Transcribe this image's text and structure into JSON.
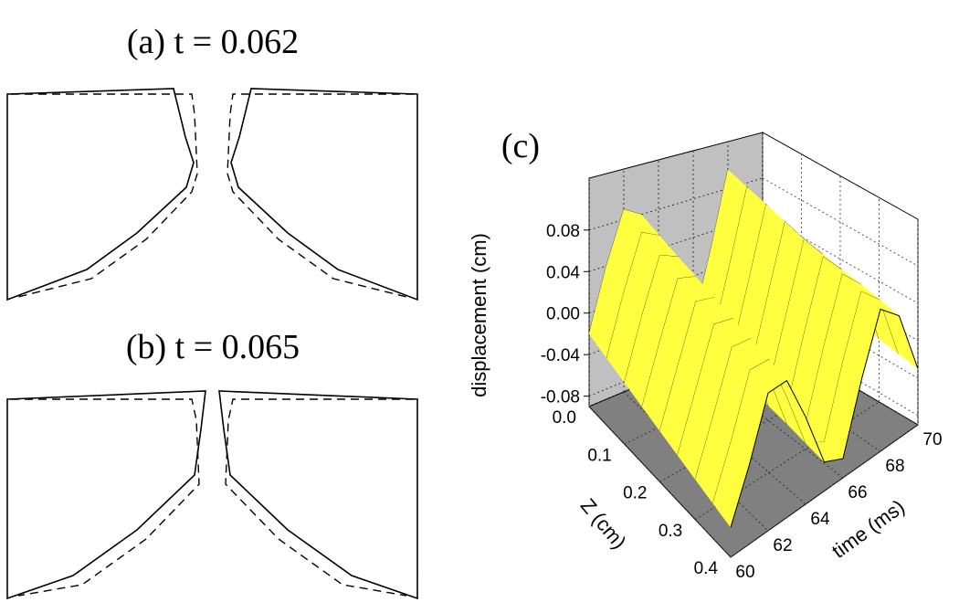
{
  "panel_a": {
    "label": "(a) t = 0.062"
  },
  "panel_b": {
    "label": "(b) t = 0.065"
  },
  "chart_data": {
    "type": "surface3d",
    "label": "(c)",
    "y_label": "displacement (cm)",
    "x_label": "Z (cm)",
    "t_label": "time (ms)",
    "xlim": [
      0,
      0.4
    ],
    "xticks": [
      {
        "value": 0,
        "label": "0.0"
      },
      0.1,
      0.2,
      0.3,
      0.4
    ],
    "tlim": [
      60,
      70
    ],
    "tticks": [
      60,
      62,
      64,
      66,
      68,
      70
    ],
    "ylim": [
      -0.09,
      0.13
    ],
    "yticks": [
      -0.08,
      -0.04,
      {
        "value": 0,
        "label": "0.00"
      },
      0.04,
      0.08
    ],
    "grid": true,
    "color": "#ffff40",
    "x": [
      0,
      0.05,
      0.1,
      0.15,
      0.2,
      0.25,
      0.3,
      0.35,
      0.4
    ],
    "time": [
      60,
      61,
      62,
      63,
      64,
      65,
      66,
      67,
      68,
      69,
      70
    ],
    "values": [
      [
        -0.02,
        0.04,
        0.09,
        0.08,
        0.03,
        -0.03,
        -0.05,
        0.02,
        0.1,
        0.07,
        0.0
      ],
      [
        -0.025,
        0.034,
        0.085,
        0.076,
        0.026,
        -0.034,
        -0.053,
        0.018,
        0.095,
        0.066,
        -0.004
      ],
      [
        -0.03,
        0.028,
        0.08,
        0.072,
        0.022,
        -0.038,
        -0.055,
        0.015,
        0.09,
        0.062,
        -0.008
      ],
      [
        -0.035,
        0.021,
        0.075,
        0.069,
        0.019,
        -0.041,
        -0.058,
        0.013,
        0.085,
        0.059,
        -0.011
      ],
      [
        -0.04,
        0.015,
        0.07,
        0.065,
        0.015,
        -0.045,
        -0.06,
        0.01,
        0.08,
        0.055,
        -0.015
      ],
      [
        -0.045,
        0.009,
        0.065,
        0.061,
        0.011,
        -0.049,
        -0.063,
        0.008,
        0.075,
        0.051,
        -0.019
      ],
      [
        -0.05,
        0.003,
        0.06,
        0.058,
        0.008,
        -0.052,
        -0.065,
        0.005,
        0.07,
        0.048,
        -0.022
      ],
      [
        -0.055,
        -0.004,
        0.055,
        0.054,
        0.004,
        -0.056,
        -0.068,
        0.003,
        0.065,
        0.044,
        -0.026
      ],
      [
        -0.06,
        -0.01,
        0.05,
        0.05,
        0.0,
        -0.06,
        -0.07,
        0.0,
        0.06,
        0.04,
        -0.03
      ]
    ]
  }
}
